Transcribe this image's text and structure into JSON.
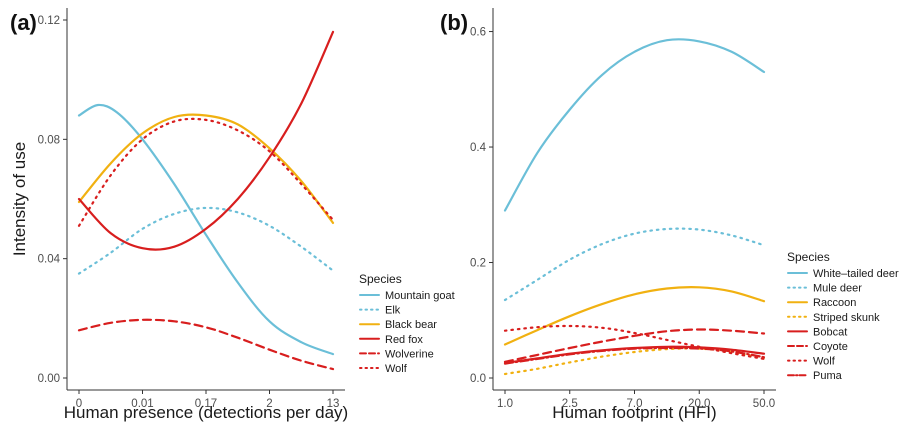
{
  "colors": {
    "blue": "#6bbfd8",
    "orange": "#f1b111",
    "red": "#d81e1e"
  },
  "chart_data": [
    {
      "type": "line",
      "panel_label": "(a)",
      "xlabel": "Human presence (detections per day)",
      "ylabel": "Intensity of use",
      "x_tick_labels": [
        "0",
        "0.01",
        "0.17",
        "2",
        "13"
      ],
      "x_range": [
        0,
        4
      ],
      "y_ticks": [
        0.0,
        0.04,
        0.08,
        0.12
      ],
      "y_tick_labels": [
        "0.00",
        "0.04",
        "0.08",
        "0.12"
      ],
      "ylim": [
        0,
        0.12
      ],
      "legend_title": "Species",
      "series": [
        {
          "name": "Mountain goat",
          "color": "blue",
          "dash": "solid",
          "x": [
            0,
            0.3,
            0.6,
            1,
            1.5,
            2,
            2.5,
            3,
            3.5,
            4
          ],
          "y": [
            0.088,
            0.0915,
            0.089,
            0.08,
            0.065,
            0.048,
            0.032,
            0.019,
            0.012,
            0.008
          ]
        },
        {
          "name": "Elk",
          "color": "blue",
          "dash": "dot",
          "x": [
            0,
            0.5,
            1,
            1.5,
            2,
            2.5,
            3,
            3.5,
            4
          ],
          "y": [
            0.035,
            0.042,
            0.05,
            0.055,
            0.057,
            0.0555,
            0.051,
            0.044,
            0.036
          ]
        },
        {
          "name": "Black bear",
          "color": "orange",
          "dash": "solid",
          "x": [
            0,
            0.5,
            1,
            1.5,
            2,
            2.5,
            3,
            3.5,
            4
          ],
          "y": [
            0.059,
            0.072,
            0.082,
            0.0875,
            0.088,
            0.085,
            0.077,
            0.066,
            0.052
          ]
        },
        {
          "name": "Red fox",
          "color": "red",
          "dash": "solid",
          "x": [
            0,
            0.5,
            1,
            1.5,
            2,
            2.5,
            3,
            3.5,
            4
          ],
          "y": [
            0.06,
            0.0485,
            0.0435,
            0.044,
            0.05,
            0.06,
            0.074,
            0.092,
            0.116
          ]
        },
        {
          "name": "Wolverine",
          "color": "red",
          "dash": "dash",
          "x": [
            0,
            0.5,
            1,
            1.5,
            2,
            2.5,
            3,
            3.5,
            4
          ],
          "y": [
            0.016,
            0.0185,
            0.0195,
            0.019,
            0.017,
            0.0135,
            0.0095,
            0.0058,
            0.003
          ]
        },
        {
          "name": "Wolf",
          "color": "red",
          "dash": "dot",
          "x": [
            0,
            0.5,
            1,
            1.5,
            2,
            2.5,
            3,
            3.5,
            4
          ],
          "y": [
            0.051,
            0.068,
            0.08,
            0.086,
            0.0865,
            0.083,
            0.076,
            0.065,
            0.053
          ]
        }
      ]
    },
    {
      "type": "line",
      "panel_label": "(b)",
      "xlabel": "Human footprint (HFI)",
      "ylabel": "",
      "x_tick_labels": [
        "1.0",
        "2.5",
        "7.0",
        "20.0",
        "50.0"
      ],
      "x_range": [
        0,
        4
      ],
      "y_ticks": [
        0.0,
        0.2,
        0.4,
        0.6
      ],
      "y_tick_labels": [
        "0.0",
        "0.2",
        "0.4",
        "0.6"
      ],
      "ylim": [
        0,
        0.62
      ],
      "legend_title": "Species",
      "series": [
        {
          "name": "White–tailed deer",
          "color": "blue",
          "dash": "solid",
          "x": [
            0,
            0.5,
            1,
            1.5,
            2,
            2.5,
            3,
            3.5,
            4
          ],
          "y": [
            0.29,
            0.39,
            0.465,
            0.525,
            0.565,
            0.585,
            0.583,
            0.565,
            0.53
          ]
        },
        {
          "name": "Mule deer",
          "color": "blue",
          "dash": "dot",
          "x": [
            0,
            0.5,
            1,
            1.5,
            2,
            2.5,
            3,
            3.5,
            4
          ],
          "y": [
            0.135,
            0.17,
            0.205,
            0.232,
            0.25,
            0.258,
            0.257,
            0.247,
            0.23
          ]
        },
        {
          "name": "Raccoon",
          "color": "orange",
          "dash": "solid",
          "x": [
            0,
            0.5,
            1,
            1.5,
            2,
            2.5,
            3,
            3.5,
            4
          ],
          "y": [
            0.058,
            0.083,
            0.107,
            0.128,
            0.145,
            0.155,
            0.157,
            0.15,
            0.133
          ]
        },
        {
          "name": "Striped skunk",
          "color": "orange",
          "dash": "dot",
          "x": [
            0,
            0.5,
            1,
            1.5,
            2,
            2.5,
            3,
            3.5,
            4
          ],
          "y": [
            0.007,
            0.016,
            0.027,
            0.037,
            0.045,
            0.05,
            0.051,
            0.045,
            0.034
          ]
        },
        {
          "name": "Bobcat",
          "color": "red",
          "dash": "solid",
          "x": [
            0,
            0.5,
            1,
            1.5,
            2,
            2.5,
            3,
            3.5,
            4
          ],
          "y": [
            0.026,
            0.034,
            0.042,
            0.048,
            0.052,
            0.054,
            0.053,
            0.049,
            0.042
          ]
        },
        {
          "name": "Coyote",
          "color": "red",
          "dash": "dash",
          "x": [
            0,
            0.5,
            1,
            1.5,
            2,
            2.5,
            3,
            3.5,
            4
          ],
          "y": [
            0.028,
            0.04,
            0.052,
            0.063,
            0.073,
            0.081,
            0.084,
            0.082,
            0.077
          ]
        },
        {
          "name": "Wolf",
          "color": "red",
          "dash": "dot",
          "x": [
            0,
            0.5,
            1,
            1.5,
            2,
            2.5,
            3,
            3.5,
            4
          ],
          "y": [
            0.082,
            0.088,
            0.09,
            0.087,
            0.078,
            0.066,
            0.054,
            0.043,
            0.033
          ]
        },
        {
          "name": "Puma",
          "color": "red",
          "dash": "dashdot",
          "x": [
            0,
            0.5,
            1,
            1.5,
            2,
            2.5,
            3,
            3.5,
            4
          ],
          "y": [
            0.025,
            0.033,
            0.041,
            0.047,
            0.051,
            0.052,
            0.051,
            0.046,
            0.036
          ]
        }
      ]
    }
  ]
}
